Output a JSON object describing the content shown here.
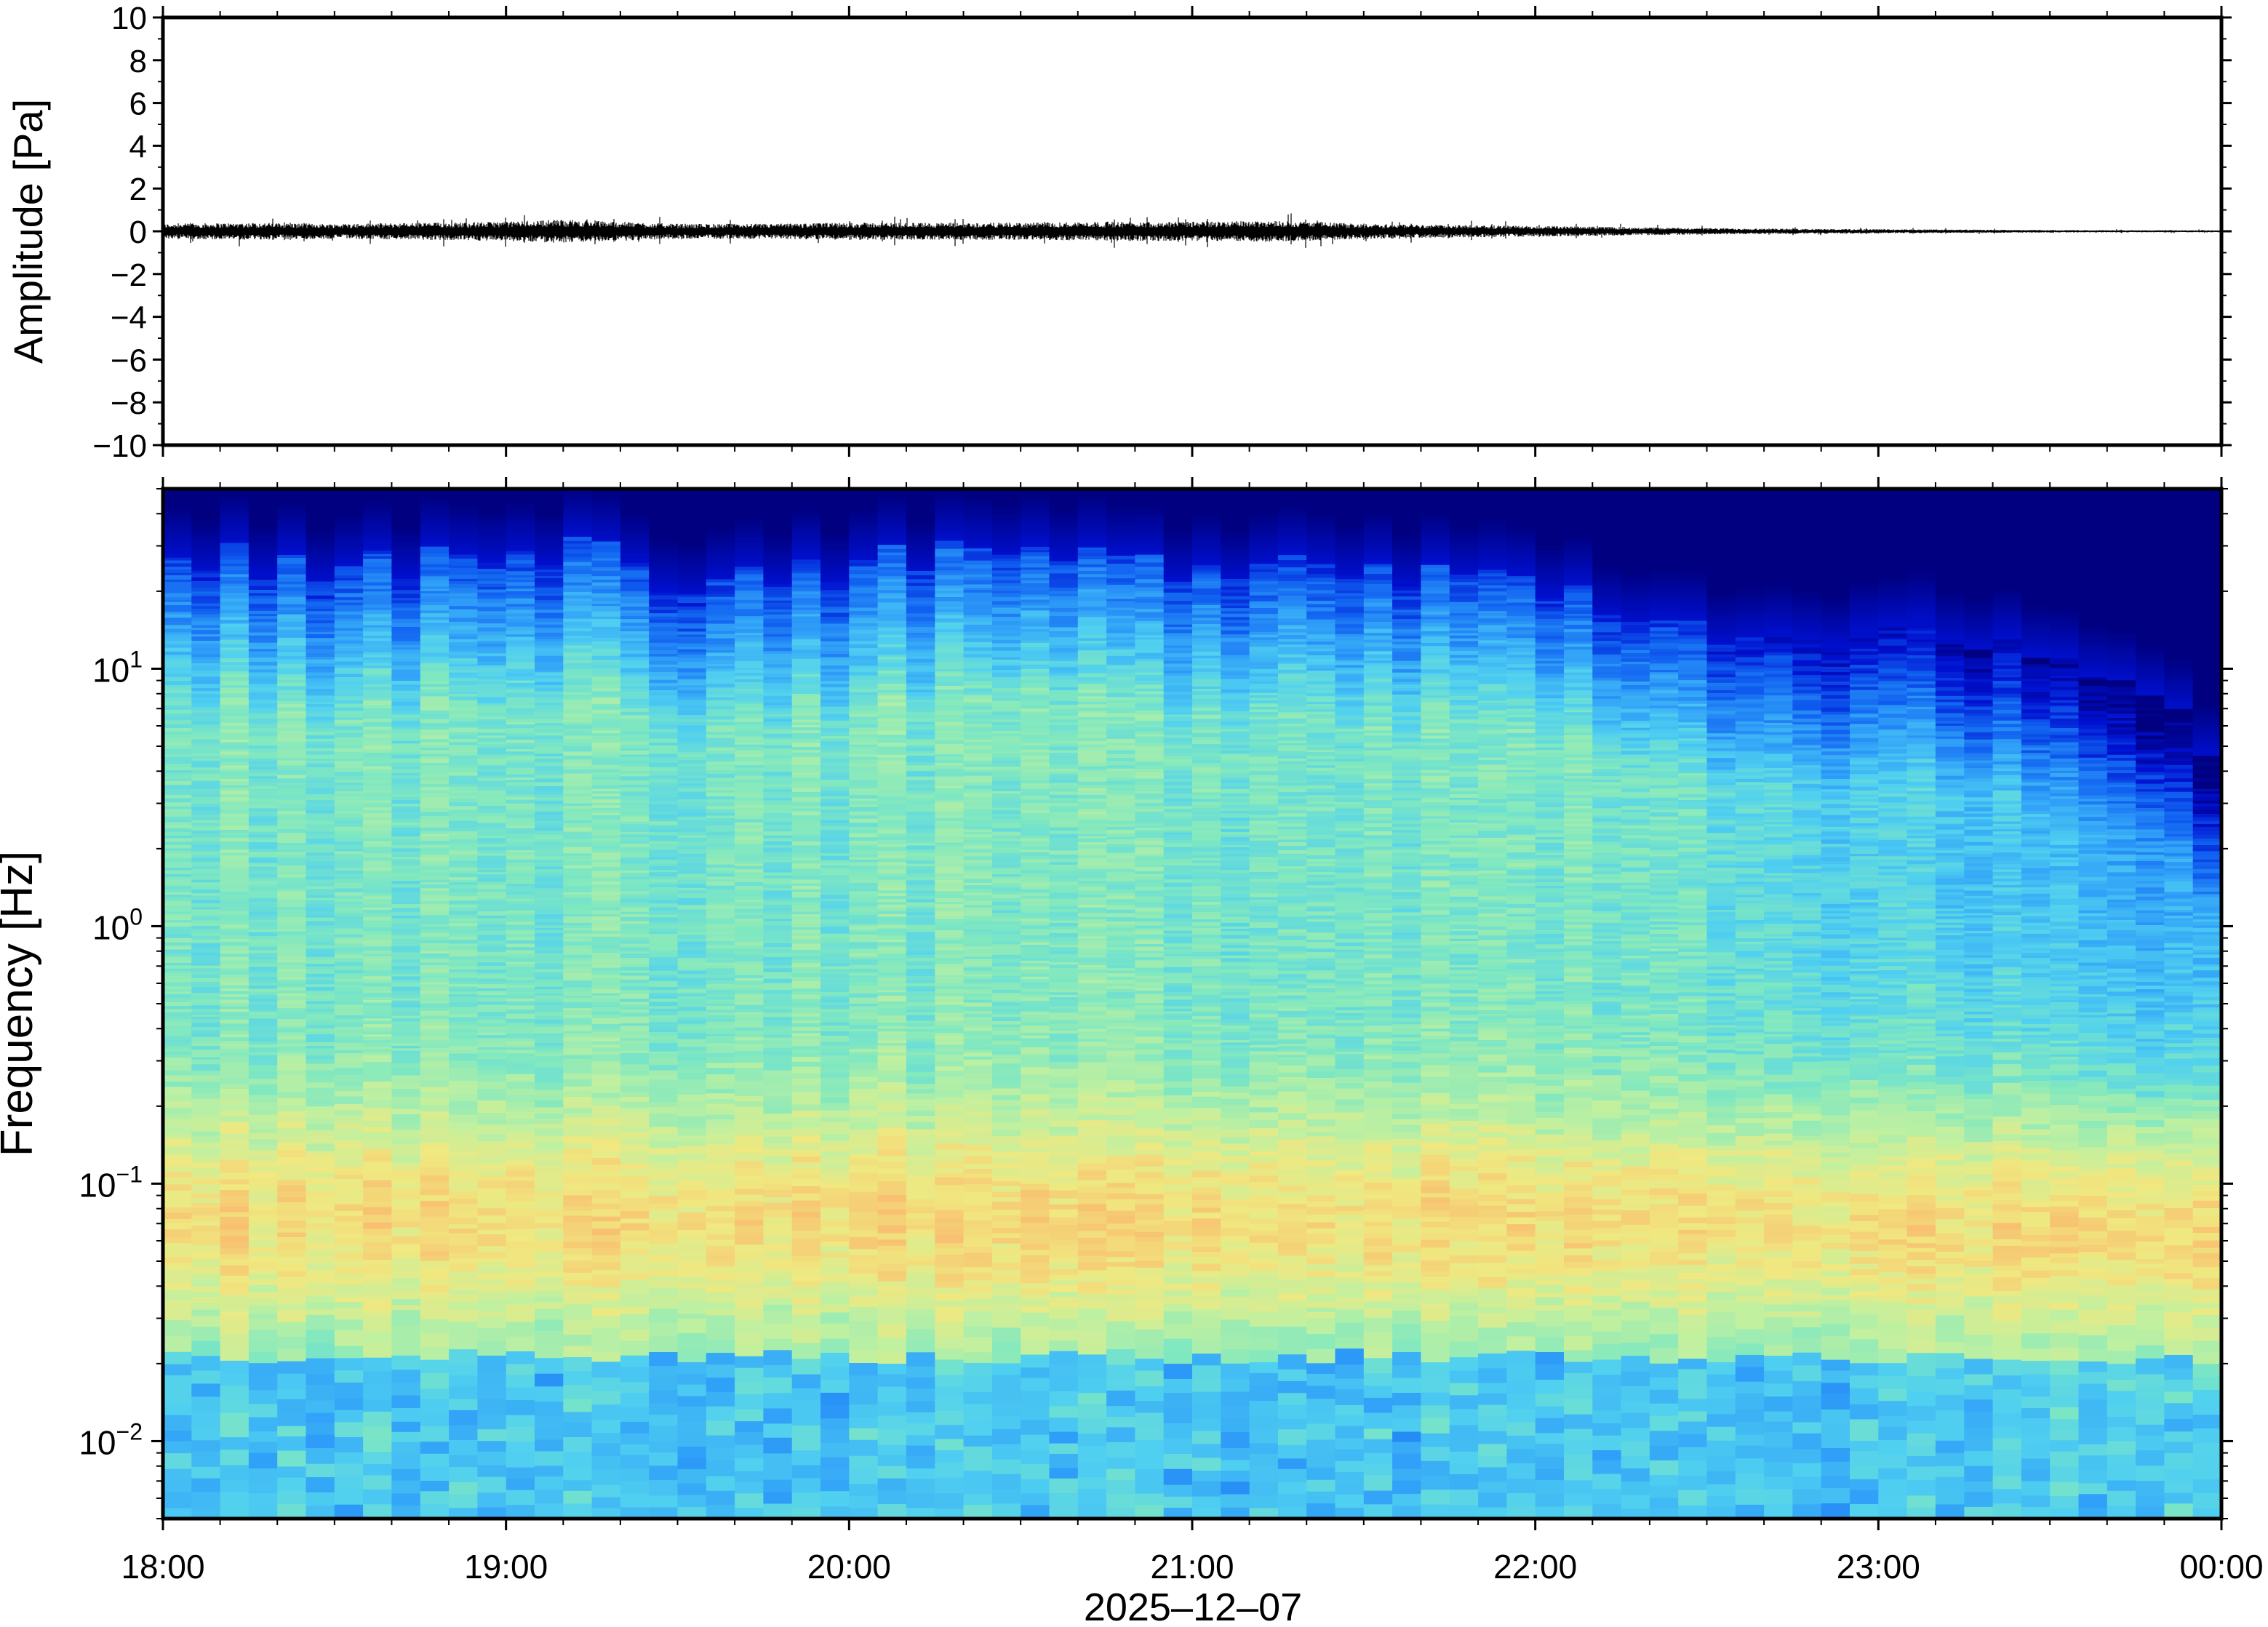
{
  "chart_data": [
    {
      "type": "line",
      "panel": "waveform",
      "title": "",
      "ylabel": "Amplitude [Pa]",
      "xlabel": "",
      "ylim": [
        -10,
        10
      ],
      "yticks": [
        10,
        8,
        6,
        4,
        2,
        0,
        -2,
        -4,
        -6,
        -8,
        -10
      ],
      "ytick_labels": [
        "10",
        "8",
        "6",
        "4",
        "2",
        "0",
        "−2",
        "−4",
        "−6",
        "−8",
        "−10"
      ],
      "x_range_hours": [
        18,
        24
      ],
      "envelope": {
        "x_hours": [
          18.0,
          18.25,
          18.5,
          18.75,
          19.0,
          19.15,
          19.5,
          19.75,
          20.0,
          20.25,
          20.5,
          20.75,
          21.0,
          21.25,
          21.5,
          21.75,
          22.0,
          22.25,
          22.5,
          22.75,
          23.0,
          23.25,
          23.5,
          23.75,
          24.0
        ],
        "half_amplitude_pa": [
          0.35,
          0.4,
          0.35,
          0.4,
          0.45,
          0.55,
          0.35,
          0.35,
          0.4,
          0.4,
          0.4,
          0.45,
          0.45,
          0.5,
          0.35,
          0.3,
          0.25,
          0.2,
          0.15,
          0.12,
          0.1,
          0.08,
          0.06,
          0.05,
          0.05
        ]
      },
      "color": "#000000"
    },
    {
      "type": "heatmap",
      "panel": "spectrogram",
      "title": "",
      "ylabel": "Frequency [Hz]",
      "xlabel": "2025–12–07",
      "yscale": "log",
      "ylim_hz": [
        0.005,
        50
      ],
      "yticks_hz": [
        10,
        1,
        0.1,
        0.01
      ],
      "ytick_labels": [
        {
          "base": "10",
          "exp": "1"
        },
        {
          "base": "10",
          "exp": "0"
        },
        {
          "base": "10",
          "exp": "−1"
        },
        {
          "base": "10",
          "exp": "−2"
        }
      ],
      "x_tick_labels": [
        "18:00",
        "19:00",
        "20:00",
        "21:00",
        "22:00",
        "23:00",
        "00:00"
      ],
      "x_tick_hours": [
        18,
        19,
        20,
        21,
        22,
        23,
        24
      ],
      "colormap": [
        "#000080",
        "#0010d0",
        "#1060f0",
        "#30a0f8",
        "#50d0f0",
        "#80e8c0",
        "#c0f0a0",
        "#f0e880",
        "#f8c070"
      ],
      "upper_cutoff_hz": {
        "x_hours": [
          18.0,
          18.5,
          19.0,
          19.2,
          19.5,
          20.0,
          20.5,
          21.0,
          21.3,
          21.5,
          22.0,
          22.3,
          22.6,
          23.0,
          23.3,
          23.6,
          23.8,
          24.0
        ],
        "f_hz": [
          28,
          25,
          28,
          30,
          22,
          25,
          28,
          24,
          28,
          25,
          22,
          16,
          14,
          14,
          12,
          9,
          8,
          3
        ]
      },
      "peak_energy_band_hz": [
        0.03,
        0.25
      ]
    }
  ]
}
